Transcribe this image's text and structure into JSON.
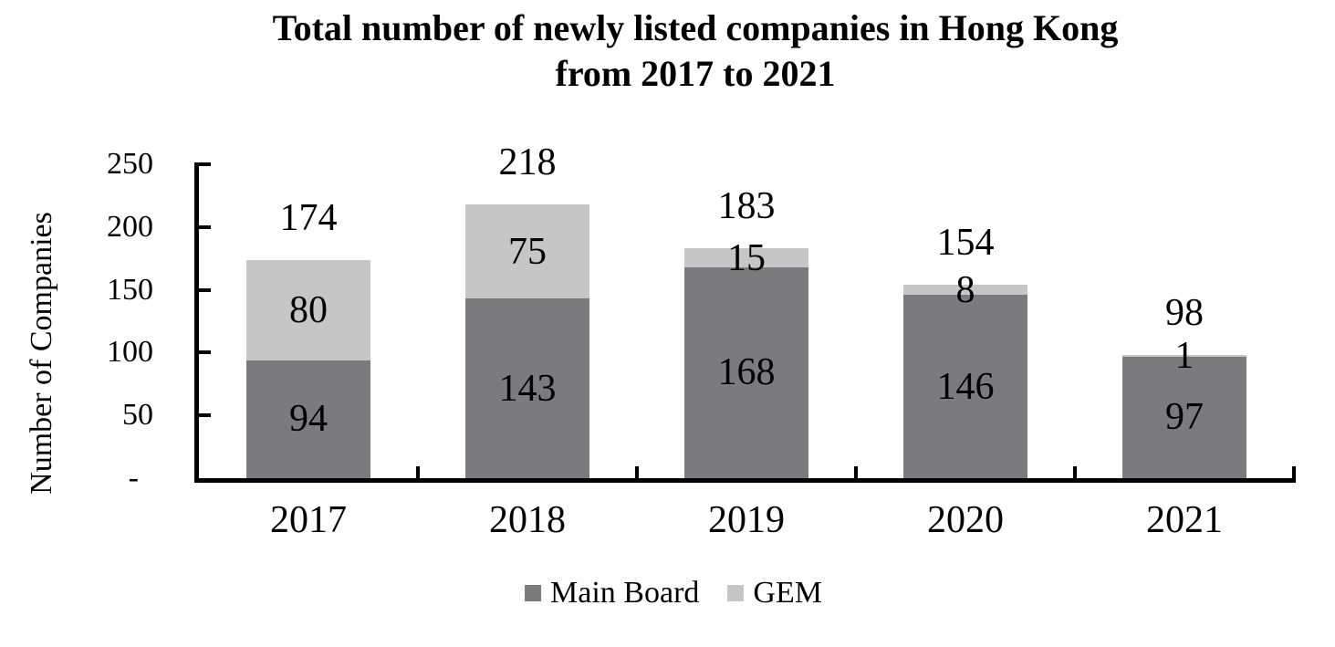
{
  "title": {
    "line1": "Total number of newly listed companies in Hong Kong",
    "line2": "from 2017 to 2021"
  },
  "y_axis": {
    "label": "Number of Companies",
    "tick_labels": [
      "250",
      "200",
      "150",
      "100",
      "50",
      "-"
    ],
    "tick_values": [
      250,
      200,
      150,
      100,
      50,
      0
    ]
  },
  "legend": [
    {
      "label": "Main Board",
      "color": "#7b7b7d"
    },
    {
      "label": "GEM",
      "color": "#c6c6c6"
    }
  ],
  "colors": {
    "main_board": "#7b7b7d",
    "gem": "#c6c6c6",
    "axis": "#000000",
    "text": "#000000",
    "background": "#ffffff"
  },
  "chart_data": {
    "type": "bar",
    "stacked": true,
    "title": "Total number of newly listed companies in Hong Kong from 2017 to 2021",
    "categories": [
      "2017",
      "2018",
      "2019",
      "2020",
      "2021"
    ],
    "series": [
      {
        "name": "Main Board",
        "values": [
          94,
          143,
          168,
          146,
          97
        ],
        "color": "#7b7b7d"
      },
      {
        "name": "GEM",
        "values": [
          80,
          75,
          15,
          8,
          1
        ],
        "color": "#c6c6c6"
      }
    ],
    "totals": [
      174,
      218,
      183,
      154,
      98
    ],
    "xlabel": "",
    "ylabel": "Number of Companies",
    "ylim": [
      0,
      250
    ],
    "yticks": [
      0,
      50,
      100,
      150,
      200,
      250
    ],
    "grid": false,
    "legend_position": "bottom",
    "data_labels": "inside-center-and-total-above"
  }
}
